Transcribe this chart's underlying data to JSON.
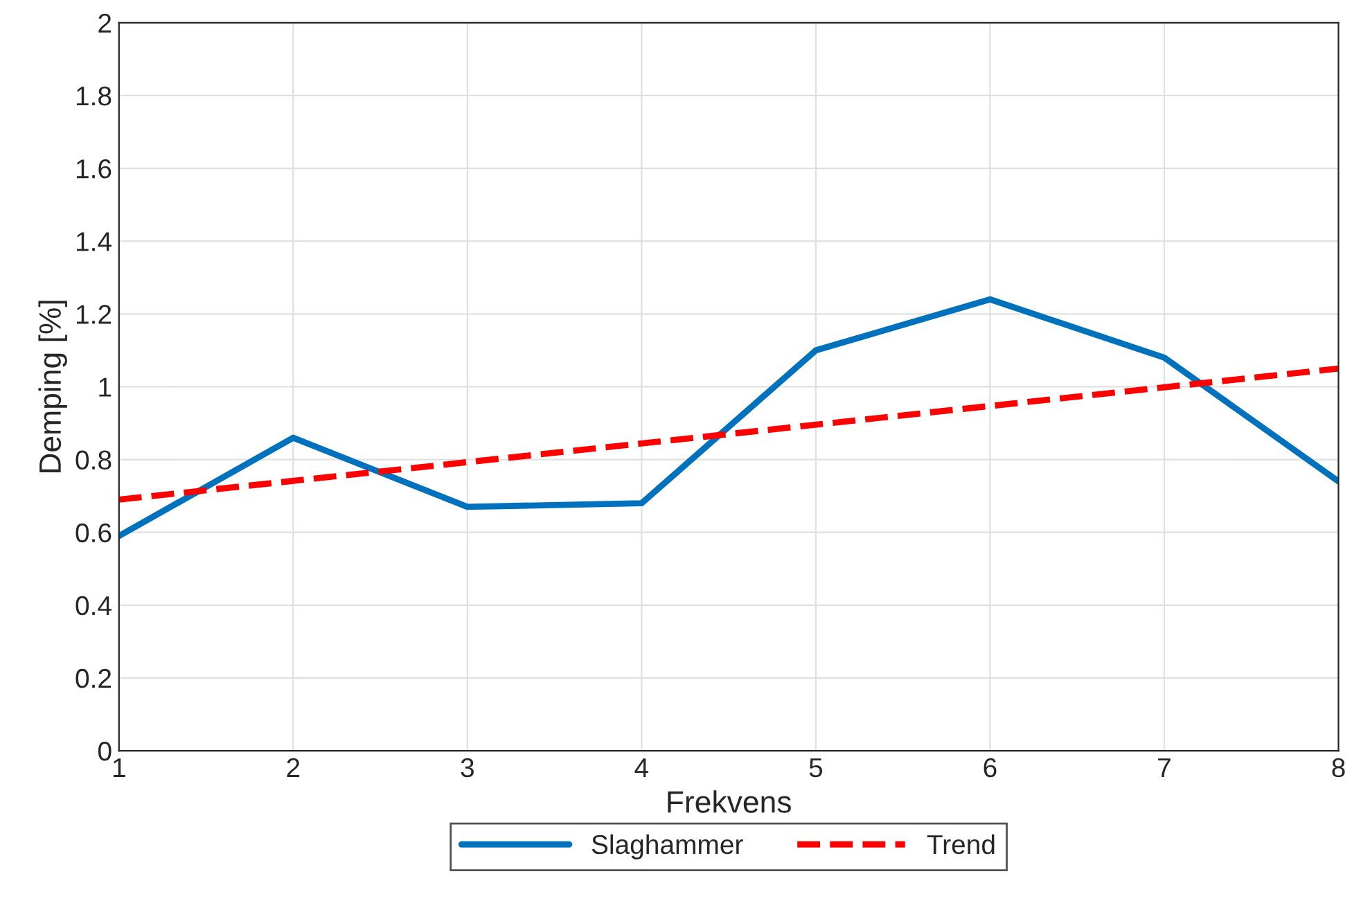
{
  "chart_data": {
    "type": "line",
    "xlabel": "Frekvens",
    "ylabel": "Demping [%]",
    "xlim": [
      1,
      8
    ],
    "xticks": [
      1,
      2,
      3,
      4,
      5,
      6,
      7,
      8
    ],
    "ylim": [
      0,
      2
    ],
    "yticks": [
      0,
      0.2,
      0.4,
      0.6,
      0.8,
      1,
      1.2,
      1.4,
      1.6,
      1.8,
      2
    ],
    "grid": true,
    "legend": "bottom",
    "series": [
      {
        "name": "Slaghammer",
        "color": "#0072bd",
        "line_style": "solid",
        "x": [
          1,
          2,
          3,
          4,
          5,
          6,
          7,
          8
        ],
        "values": [
          0.59,
          0.86,
          0.67,
          0.68,
          1.1,
          1.24,
          1.08,
          0.74
        ]
      },
      {
        "name": "Trend",
        "color": "#ff0000",
        "line_style": "dashed",
        "x": [
          1,
          8
        ],
        "values": [
          0.69,
          1.05
        ]
      }
    ]
  }
}
